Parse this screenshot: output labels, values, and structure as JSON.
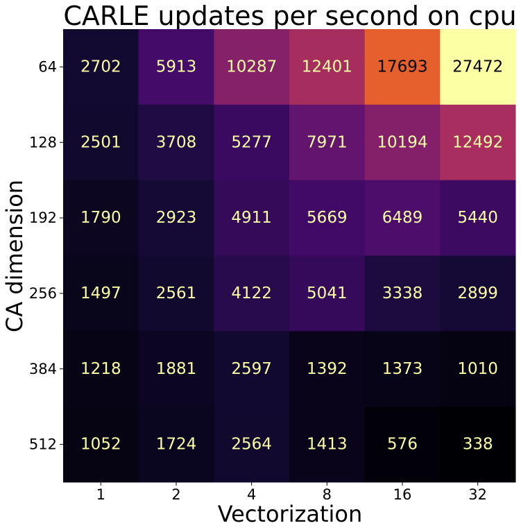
{
  "chart_data": {
    "type": "heatmap",
    "title": "CARLE updates per second on cpu",
    "xlabel": "Vectorization",
    "ylabel": "CA dimension",
    "x_categories": [
      "1",
      "2",
      "4",
      "8",
      "16",
      "32"
    ],
    "y_categories": [
      "64",
      "128",
      "192",
      "256",
      "384",
      "512"
    ],
    "values": [
      [
        2702,
        5913,
        10287,
        12401,
        17693,
        27472
      ],
      [
        2501,
        3708,
        5277,
        7971,
        10194,
        12492
      ],
      [
        1790,
        2923,
        4911,
        5669,
        6489,
        5440
      ],
      [
        1497,
        2561,
        4122,
        5041,
        3338,
        2899
      ],
      [
        1218,
        1881,
        2597,
        1392,
        1373,
        1010
      ],
      [
        1052,
        1724,
        2564,
        1413,
        576,
        338
      ]
    ],
    "colormap": "inferno",
    "vmin": 338,
    "vmax": 27472,
    "label_colors": {
      "light": "#fcfda4",
      "dark": "#000000"
    }
  }
}
